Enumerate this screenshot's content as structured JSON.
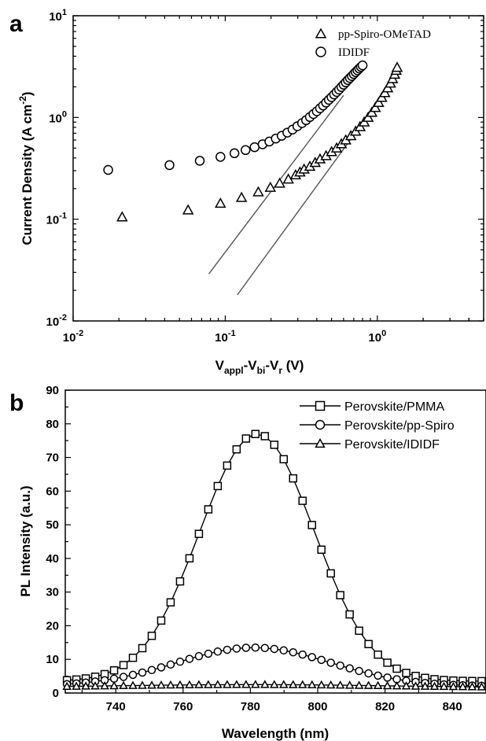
{
  "chart_data": [
    {
      "panel": "a",
      "type": "scatter",
      "log_x": true,
      "log_y": true,
      "xlim": [
        0.01,
        5
      ],
      "ylim": [
        0.01,
        10
      ],
      "x_ticks": [
        {
          "value": 0.01,
          "base": "10",
          "exp": "-2"
        },
        {
          "value": 0.1,
          "base": "10",
          "exp": "-1"
        },
        {
          "value": 1,
          "base": "10",
          "exp": "0"
        }
      ],
      "y_ticks": [
        {
          "value": 0.01,
          "base": "10",
          "exp": "-2"
        },
        {
          "value": 0.1,
          "base": "10",
          "exp": "-1"
        },
        {
          "value": 1,
          "base": "10",
          "exp": "0"
        },
        {
          "value": 10,
          "base": "10",
          "exp": "1"
        }
      ],
      "xlabel": {
        "main": "V",
        "sub1": "appl",
        "sep1": "-V",
        "sub2": "bi",
        "sep2": "-V",
        "sub3": "r",
        "tail": " (V)"
      },
      "ylabel": {
        "main": "Current Density (A cm",
        "sup": "-2",
        "tail": ")"
      },
      "legend_position": "top-right",
      "series": [
        {
          "name": "pp-Spiro-OMeTAD",
          "marker": "triangle",
          "x": [
            0.021,
            0.057,
            0.093,
            0.128,
            0.165,
            0.198,
            0.228,
            0.26,
            0.29,
            0.31,
            0.33,
            0.36,
            0.39,
            0.42,
            0.46,
            0.5,
            0.54,
            0.58,
            0.62,
            0.67,
            0.72,
            0.77,
            0.82,
            0.87,
            0.92,
            0.97,
            1.02,
            1.07,
            1.12,
            1.17,
            1.22,
            1.26,
            1.3,
            1.33,
            1.35
          ],
          "y": [
            0.105,
            0.123,
            0.143,
            0.163,
            0.185,
            0.205,
            0.225,
            0.247,
            0.272,
            0.29,
            0.31,
            0.33,
            0.36,
            0.39,
            0.42,
            0.46,
            0.5,
            0.55,
            0.6,
            0.66,
            0.73,
            0.81,
            0.9,
            1.0,
            1.12,
            1.25,
            1.4,
            1.57,
            1.75,
            1.95,
            2.17,
            2.4,
            2.65,
            2.9,
            3.1
          ]
        },
        {
          "name": "IDIDF",
          "marker": "circle",
          "x": [
            0.017,
            0.043,
            0.068,
            0.093,
            0.115,
            0.136,
            0.156,
            0.176,
            0.195,
            0.215,
            0.235,
            0.256,
            0.277,
            0.298,
            0.32,
            0.34,
            0.36,
            0.38,
            0.4,
            0.42,
            0.44,
            0.46,
            0.48,
            0.5,
            0.52,
            0.54,
            0.56,
            0.58,
            0.6,
            0.62,
            0.64,
            0.66,
            0.68,
            0.7,
            0.72,
            0.74,
            0.76,
            0.78,
            0.8
          ],
          "y": [
            0.305,
            0.34,
            0.375,
            0.41,
            0.445,
            0.478,
            0.51,
            0.545,
            0.58,
            0.62,
            0.66,
            0.71,
            0.76,
            0.82,
            0.88,
            0.94,
            1.01,
            1.08,
            1.15,
            1.23,
            1.31,
            1.4,
            1.49,
            1.58,
            1.68,
            1.78,
            1.88,
            1.99,
            2.1,
            2.21,
            2.33,
            2.44,
            2.55,
            2.67,
            2.79,
            2.91,
            3.03,
            3.14,
            3.25
          ]
        }
      ],
      "fit_lines": [
        {
          "x": [
            0.078,
            0.6
          ],
          "y": [
            0.029,
            1.65
          ]
        },
        {
          "x": [
            0.12,
            1.25
          ],
          "y": [
            0.018,
            2.2
          ]
        }
      ]
    },
    {
      "panel": "b",
      "type": "line",
      "xlim": [
        725,
        850
      ],
      "ylim": [
        0,
        90
      ],
      "x_ticks": [
        740,
        760,
        780,
        800,
        820,
        840
      ],
      "y_ticks": [
        0,
        10,
        20,
        30,
        40,
        50,
        60,
        70,
        80,
        90
      ],
      "xlabel": "Wavelength (nm)",
      "ylabel": "PL Intensity (a.u.)",
      "legend_position": "top-right",
      "series": [
        {
          "name": "Perovskite/PMMA",
          "marker": "square",
          "peak": 782,
          "amplitude": 73.5,
          "sigma": 17.0,
          "baseline": 3.5
        },
        {
          "name": "Perovskite/pp-Spiro",
          "marker": "circle",
          "peak": 781,
          "amplitude": 11.5,
          "sigma": 23.0,
          "baseline": 2.0
        },
        {
          "name": "Perovskite/IDIDF",
          "marker": "triangle",
          "peak": 780,
          "amplitude": 0.9,
          "sigma": 40.0,
          "baseline": 1.6
        }
      ],
      "x_start": 725.5,
      "x_step": 2.8
    }
  ],
  "panel_labels": {
    "a": "a",
    "b": "b"
  }
}
